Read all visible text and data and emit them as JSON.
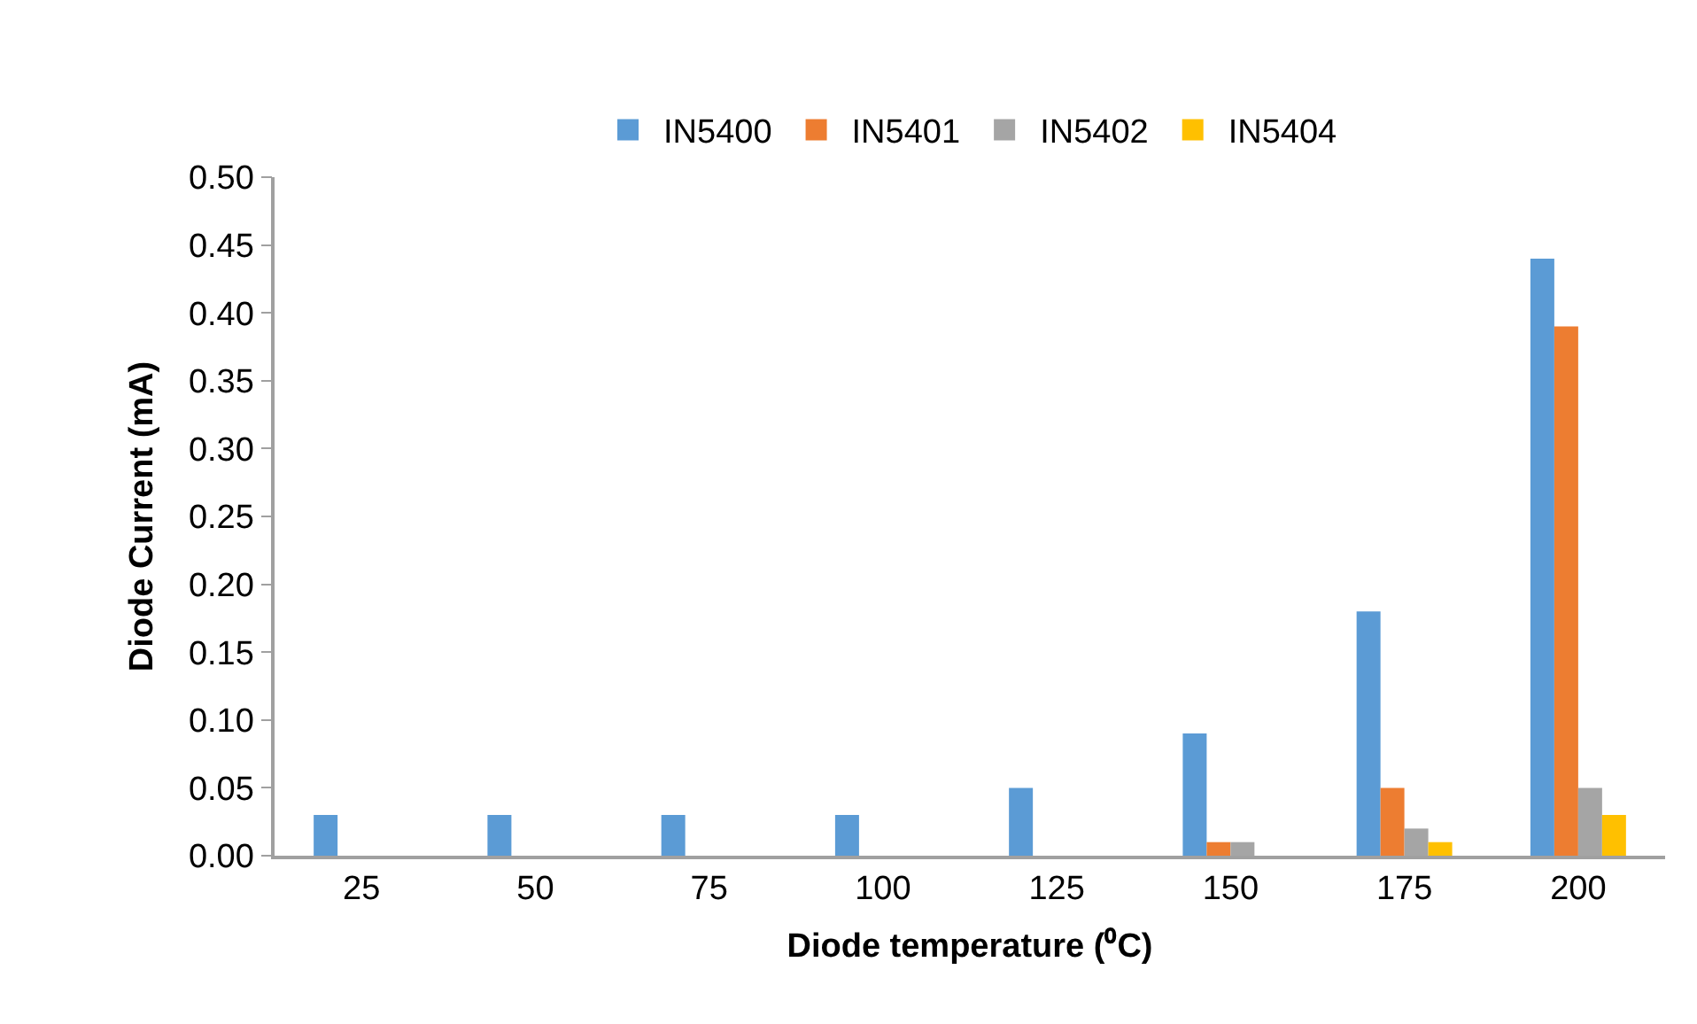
{
  "chart_data": {
    "type": "bar",
    "xlabel": "Diode temperature (⁰C)",
    "ylabel": "Diode Current (mA)",
    "categories": [
      "25",
      "50",
      "75",
      "100",
      "125",
      "150",
      "175",
      "200"
    ],
    "series": [
      {
        "name": "IN5400",
        "color": "#5b9bd5",
        "values": [
          0.03,
          0.03,
          0.03,
          0.03,
          0.05,
          0.09,
          0.18,
          0.44
        ]
      },
      {
        "name": "IN5401",
        "color": "#ed7d31",
        "values": [
          0,
          0,
          0,
          0,
          0,
          0.01,
          0.05,
          0.39
        ]
      },
      {
        "name": "IN5402",
        "color": "#a5a5a5",
        "values": [
          0,
          0,
          0,
          0,
          0,
          0.01,
          0.02,
          0.05
        ]
      },
      {
        "name": "IN5404",
        "color": "#ffc000",
        "values": [
          0,
          0,
          0,
          0,
          0,
          0,
          0.01,
          0.03
        ]
      }
    ],
    "ylim": [
      0,
      0.5
    ],
    "yticks": [
      {
        "value": 0,
        "label": "0.00"
      },
      {
        "value": 0.05,
        "label": "0.05"
      },
      {
        "value": 0.1,
        "label": "0.10"
      },
      {
        "value": 0.15,
        "label": "0.15"
      },
      {
        "value": 0.2,
        "label": "0.20"
      },
      {
        "value": 0.25,
        "label": "0.25"
      },
      {
        "value": 0.3,
        "label": "0.30"
      },
      {
        "value": 0.35,
        "label": "0.35"
      },
      {
        "value": 0.4,
        "label": "0.40"
      },
      {
        "value": 0.45,
        "label": "0.45"
      },
      {
        "value": 0.5,
        "label": "0.50"
      }
    ],
    "legend": "top"
  }
}
